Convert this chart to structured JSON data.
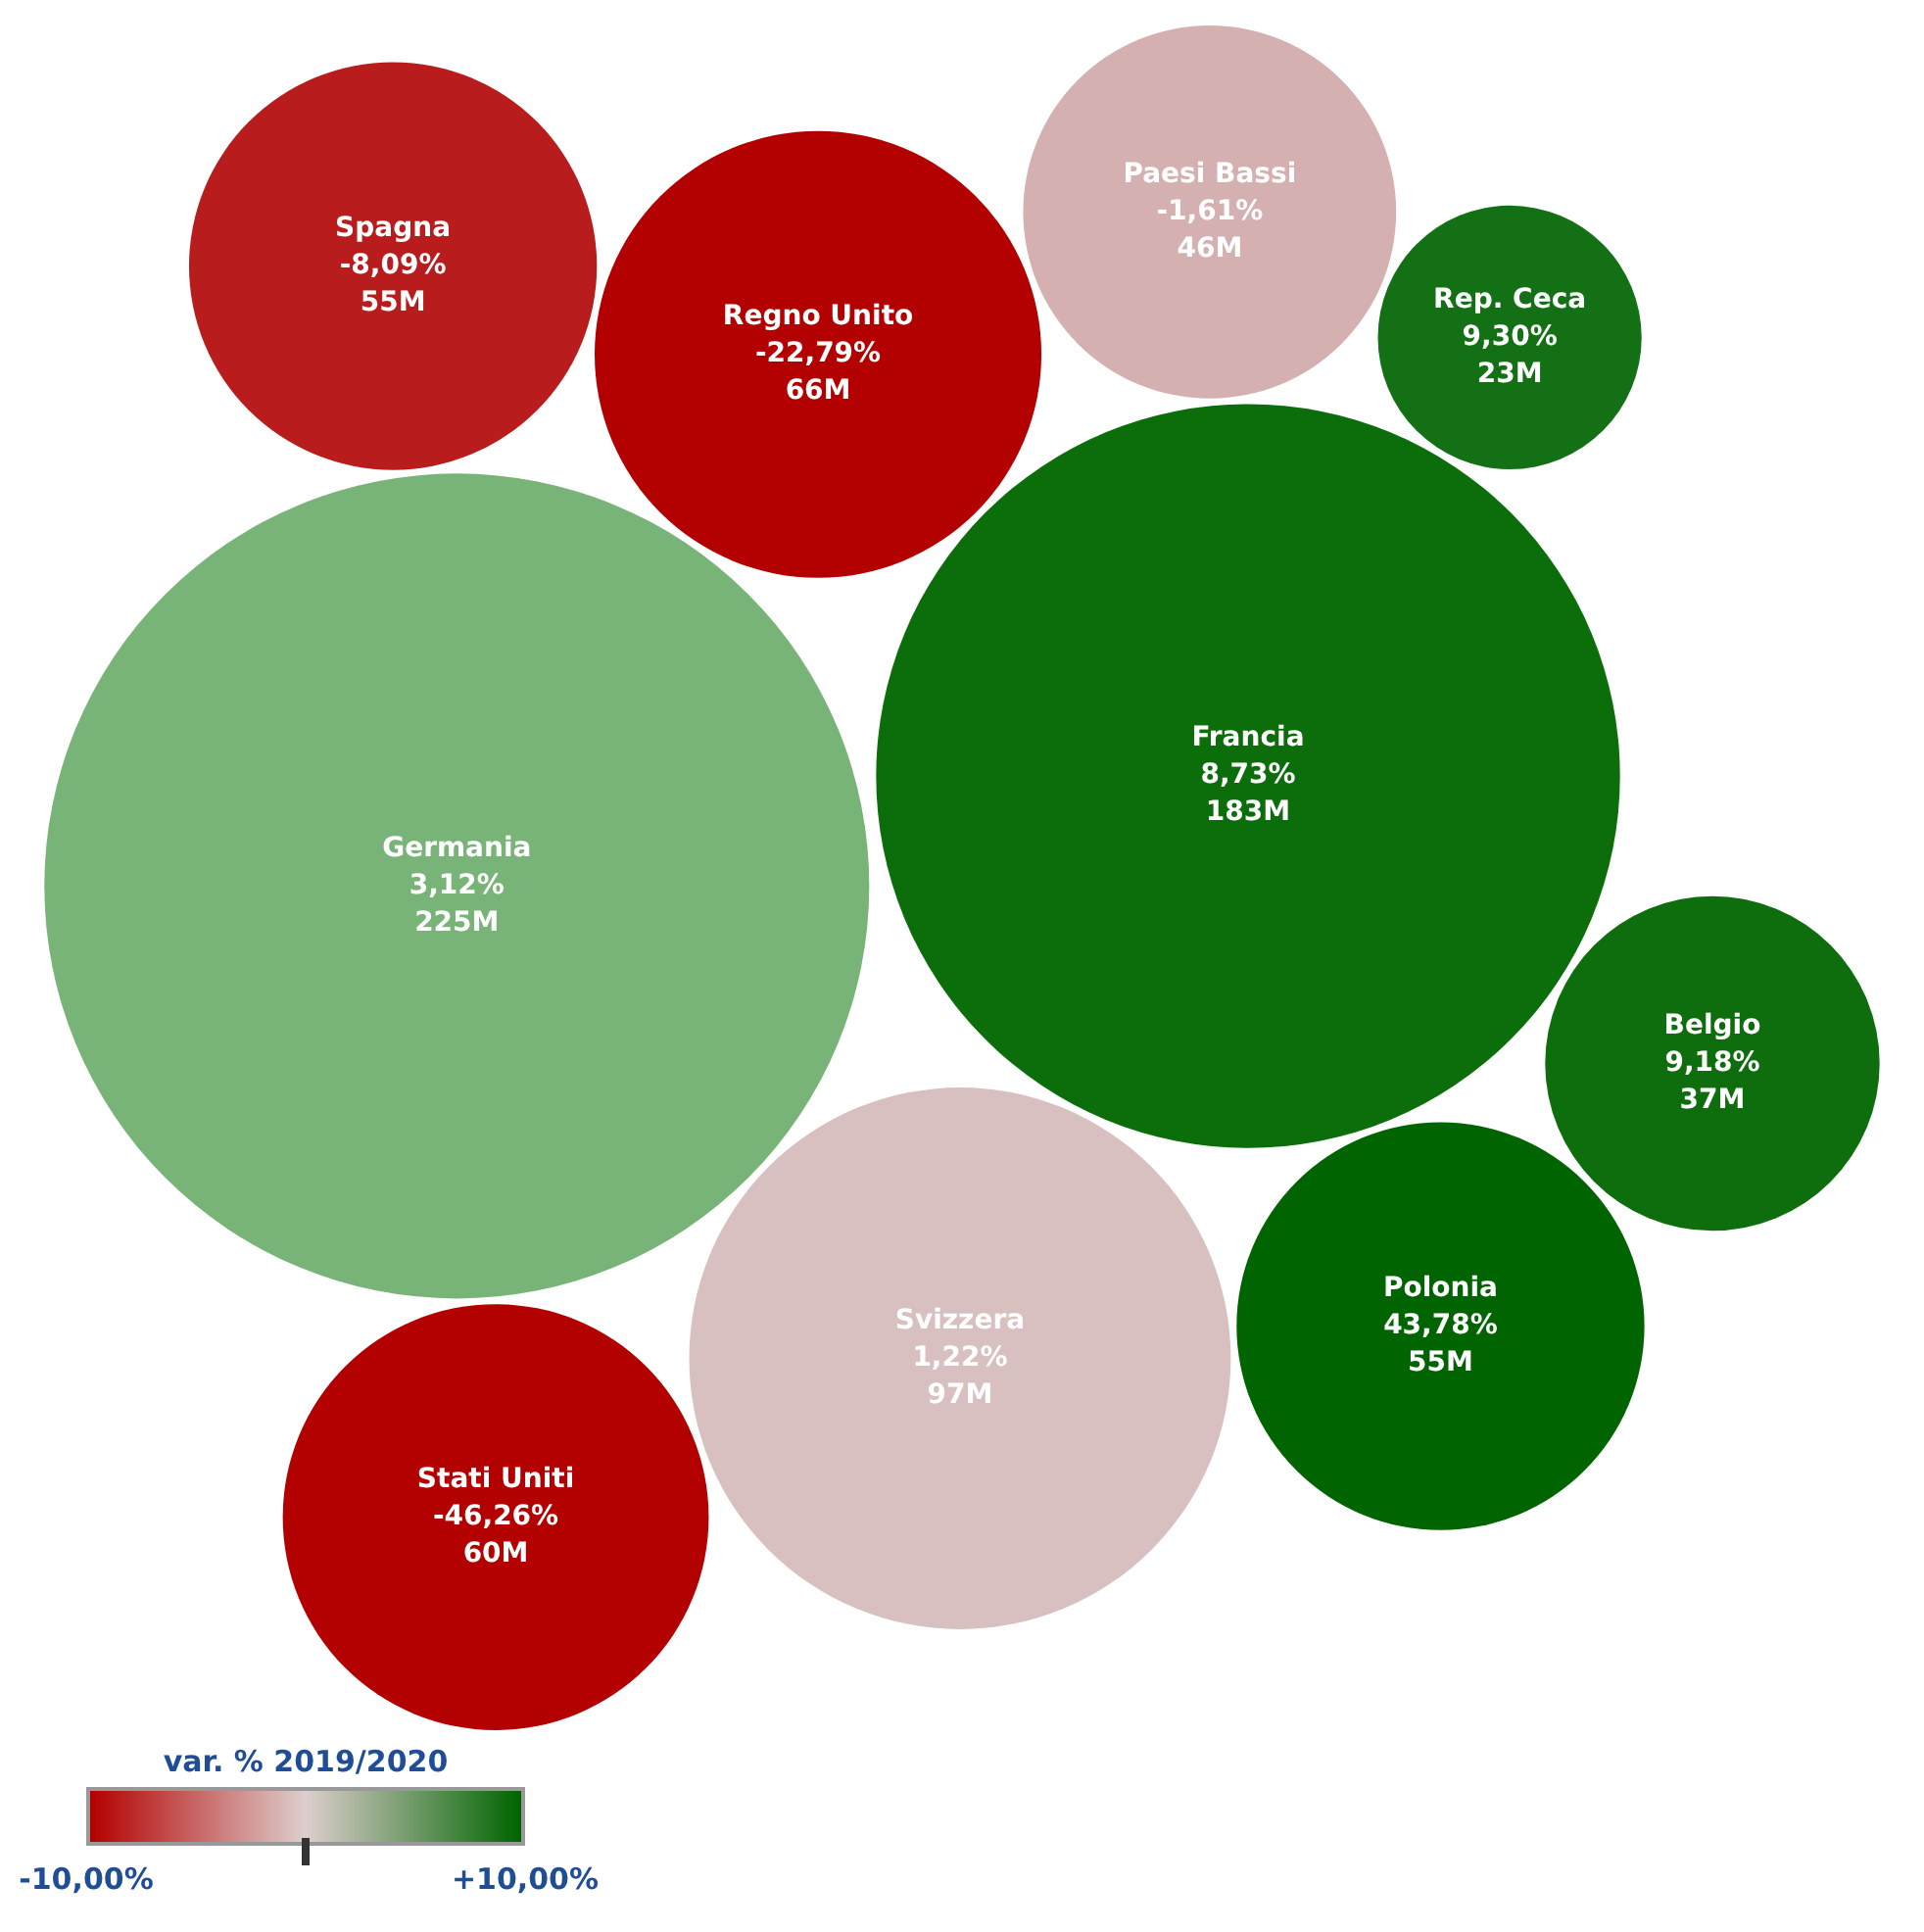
{
  "chart_data": {
    "type": "other",
    "categories": [
      "Germania",
      "Francia",
      "Svizzera",
      "Regno Unito",
      "Stati Uniti",
      "Polonia",
      "Spagna",
      "Paesi Bassi",
      "Belgio",
      "Rep. Ceca"
    ],
    "values": [
      225,
      183,
      97,
      66,
      60,
      55,
      55,
      46,
      37,
      23
    ],
    "value_labels": [
      "225M",
      "183M",
      "97M",
      "66M",
      "60M",
      "55M",
      "55M",
      "46M",
      "37M",
      "23M"
    ],
    "colors": [
      "#78b478",
      "#0b6e0b",
      "#d8c0c0",
      "#b30000",
      "#b30000",
      "#006400",
      "#b81c1c",
      "#d4b0b0",
      "#0e6e0e",
      "#147014"
    ],
    "annotations": [
      {
        "text": "3,12%",
        "x": "Germania"
      },
      {
        "text": "8,73%",
        "x": "Francia"
      },
      {
        "text": "1,22%",
        "x": "Svizzera"
      },
      {
        "text": "-22,79%",
        "x": "Regno Unito"
      },
      {
        "text": "-46,26%",
        "x": "Stati Uniti"
      },
      {
        "text": "43,78%",
        "x": "Polonia"
      },
      {
        "text": "-8,09%",
        "x": "Spagna"
      },
      {
        "text": "-1,61%",
        "x": "Paesi Bassi"
      },
      {
        "text": "9,18%",
        "x": "Belgio"
      },
      {
        "text": "9,30%",
        "x": "Rep. Ceca"
      },
      "-10,00%",
      "+10,00%"
    ],
    "clabel": "var. % 2019/2020"
  }
}
